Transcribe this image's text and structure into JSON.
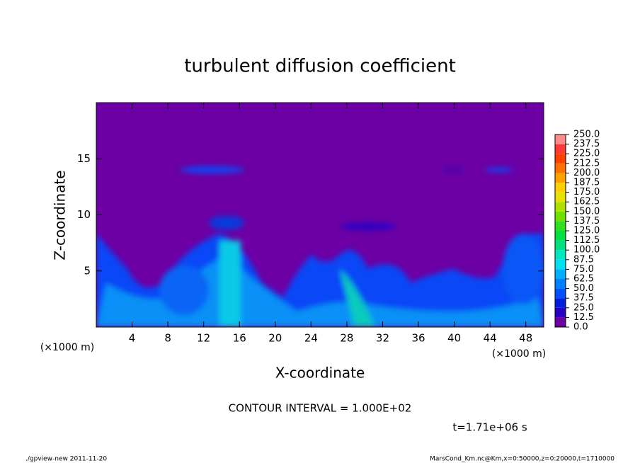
{
  "chart_data": {
    "type": "contour",
    "title": "turbulent diffusion coefficient",
    "x_label": "X-coordinate",
    "y_label": "Z-coordinate",
    "x_unit": "(×1000 m)",
    "y_unit": "(×1000 m)",
    "xlim": [
      0,
      50
    ],
    "ylim": [
      0,
      20
    ],
    "xticks": [
      4,
      8,
      12,
      16,
      20,
      24,
      28,
      32,
      36,
      40,
      44,
      48
    ],
    "yticks": [
      5,
      10,
      15
    ],
    "contour_note": "CONTOUR INTERVAL = 1.000E+02",
    "time_note": "t=1.71e+06 s",
    "footer_left": "./gpview-new   2011-11-20",
    "footer_right": "MarsCond_Km.nc@Km,x=0:50000,z=0:20000,t=1710000",
    "colorbar": {
      "lim": [
        0,
        250
      ],
      "levels": [
        {
          "value": 0,
          "label": "0.0"
        },
        {
          "value": 12.5,
          "label": "12.5"
        },
        {
          "value": 25,
          "label": "25.0"
        },
        {
          "value": 37.5,
          "label": "37.5"
        },
        {
          "value": 50,
          "label": "50.0"
        },
        {
          "value": 62.5,
          "label": "62.5"
        },
        {
          "value": 75,
          "label": "75.0"
        },
        {
          "value": 87.5,
          "label": "87.5"
        },
        {
          "value": 100,
          "label": "100.0"
        },
        {
          "value": 112.5,
          "label": "112.5"
        },
        {
          "value": 125,
          "label": "125.0"
        },
        {
          "value": 137.5,
          "label": "137.5"
        },
        {
          "value": 150,
          "label": "150.0"
        },
        {
          "value": 162.5,
          "label": "162.5"
        },
        {
          "value": 175,
          "label": "175.0"
        },
        {
          "value": 187.5,
          "label": "187.5"
        },
        {
          "value": 200,
          "label": "200.0"
        },
        {
          "value": 212.5,
          "label": "212.5"
        },
        {
          "value": 225,
          "label": "225.0"
        },
        {
          "value": 237.5,
          "label": "237.5"
        },
        {
          "value": 250,
          "label": "250.0"
        }
      ],
      "colors": [
        "#6c00a4",
        "#2a00c4",
        "#0020e0",
        "#0050ff",
        "#0080ff",
        "#00b0ff",
        "#00e0f0",
        "#00e8c0",
        "#00e080",
        "#00e040",
        "#30e020",
        "#70e000",
        "#b0e000",
        "#e8e000",
        "#ffd000",
        "#ffa000",
        "#ff7000",
        "#ff4000",
        "#ff3838",
        "#ff8c8c"
      ]
    }
  }
}
